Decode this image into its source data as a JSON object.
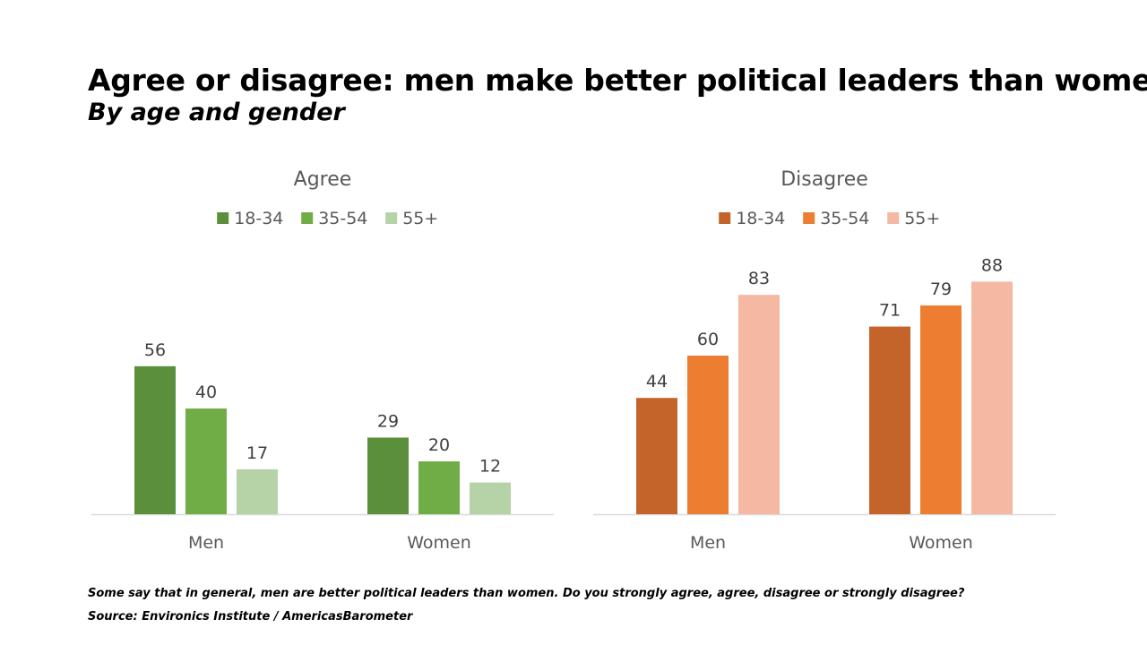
{
  "title": "Agree or disagree: men make better political leaders than women",
  "subtitle": "By age and gender",
  "chart_data": [
    {
      "type": "bar",
      "title": "Agree",
      "categories": [
        "Men",
        "Women"
      ],
      "series": [
        {
          "name": "18-34",
          "values": [
            56,
            29
          ],
          "color": "#5b8f3b"
        },
        {
          "name": "35-54",
          "values": [
            40,
            20
          ],
          "color": "#70ad47"
        },
        {
          "name": "55+",
          "values": [
            17,
            12
          ],
          "color": "#b6d3a8"
        }
      ],
      "ylim": [
        0,
        100
      ],
      "grid": false,
      "legend": "top"
    },
    {
      "type": "bar",
      "title": "Disagree",
      "categories": [
        "Men",
        "Women"
      ],
      "series": [
        {
          "name": "18-34",
          "values": [
            44,
            71
          ],
          "color": "#c4642a"
        },
        {
          "name": "35-54",
          "values": [
            60,
            79
          ],
          "color": "#ed7d31"
        },
        {
          "name": "55+",
          "values": [
            83,
            88
          ],
          "color": "#f4b8a3"
        }
      ],
      "ylim": [
        0,
        100
      ],
      "grid": false,
      "legend": "top"
    }
  ],
  "footnote": "Some say that in general, men are better political leaders than women. Do you strongly agree, agree, disagree or strongly disagree?",
  "source": "Source: Environics Institute / AmericasBarometer"
}
